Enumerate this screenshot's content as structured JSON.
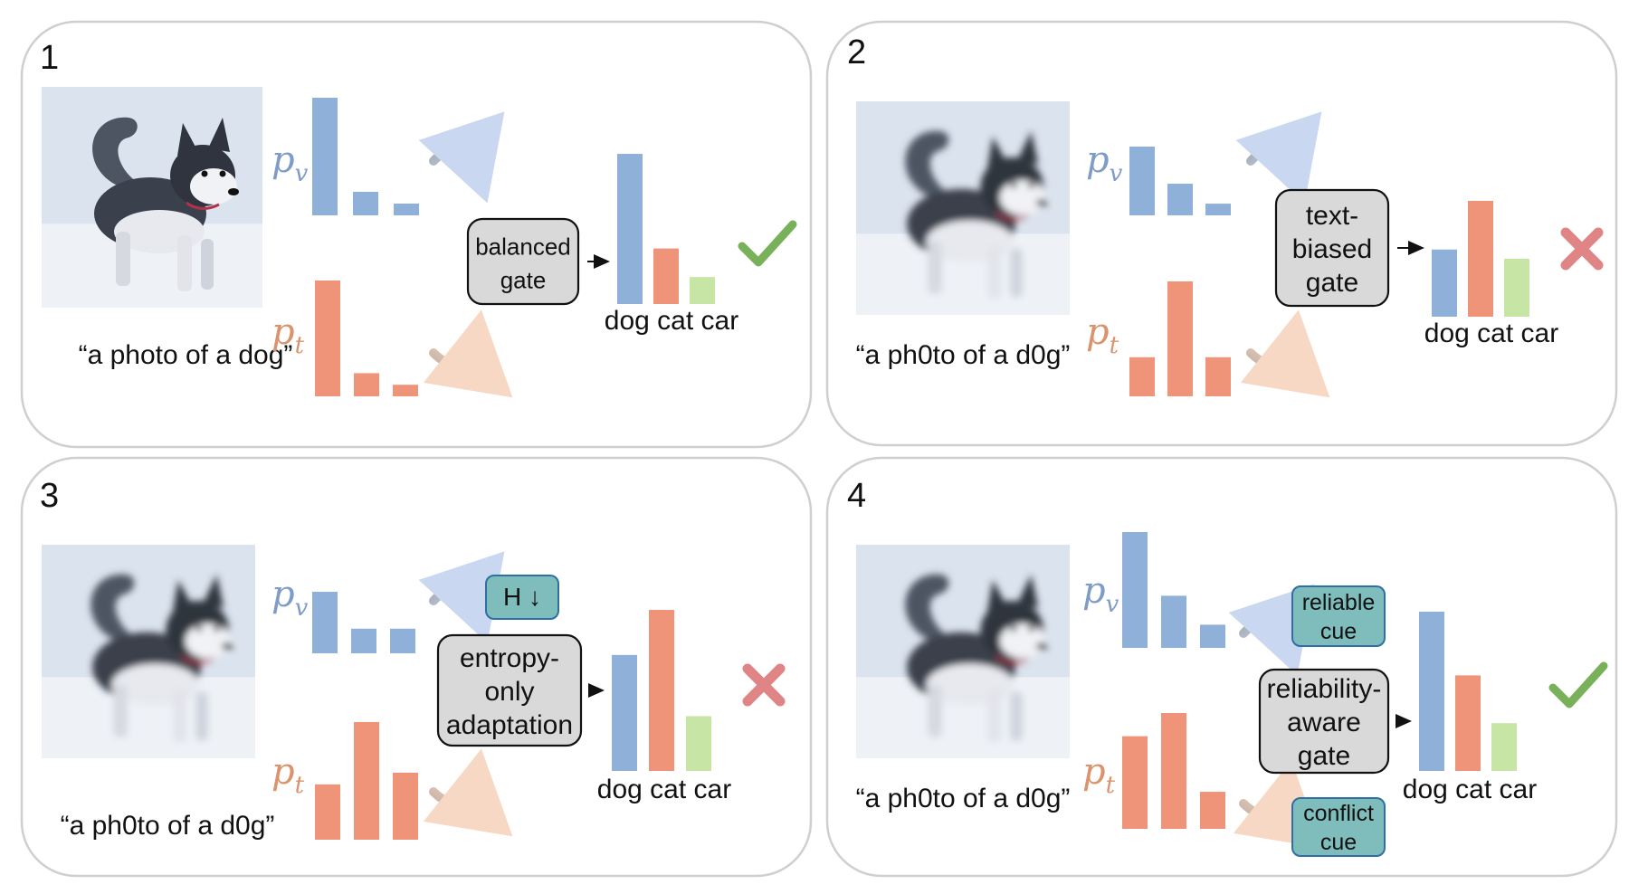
{
  "colors": {
    "visual": "#8fb0d8",
    "text": "#ef9478",
    "car": "#c7e5a5",
    "gate_fill": "#d9d9d9",
    "cue_fill": "#7fbcbc",
    "cue_stroke": "#2f6fa3",
    "check": "#79b15a",
    "cross": "#e08585",
    "pv_label": "#7f9cc7",
    "pt_label": "#d9946d",
    "panel_stroke": "#cfcfcf"
  },
  "icons": {
    "correct": "check-icon",
    "wrong": "cross-icon",
    "visual_arrow": "curved-arrow-icon",
    "text_arrow": "curved-arrow-icon"
  },
  "panels": [
    {
      "number": "1",
      "caption": "“a photo of a dog”",
      "image_quality": "clear",
      "pv_label": "p",
      "pv_sub": "v",
      "pt_label": "p",
      "pt_sub": "t",
      "pv_values": [
        1.0,
        0.2,
        0.1
      ],
      "pt_values": [
        1.0,
        0.2,
        0.1
      ],
      "gate": [
        "balanced",
        "gate"
      ],
      "cues": [],
      "output_values": [
        1.0,
        0.37,
        0.18
      ],
      "classes": "dog cat car",
      "result": "correct"
    },
    {
      "number": "2",
      "caption": "“a ph0to of a d0g”",
      "image_quality": "blurred",
      "pv_label": "p",
      "pv_sub": "v",
      "pt_label": "p",
      "pt_sub": "t",
      "pv_values": [
        1.0,
        0.46,
        0.17
      ],
      "pt_values": [
        0.34,
        1.0,
        0.34
      ],
      "gate": [
        "text-",
        "biased",
        "gate"
      ],
      "cues": [],
      "output_values": [
        0.58,
        1.0,
        0.5
      ],
      "classes": "dog cat car",
      "result": "wrong"
    },
    {
      "number": "3",
      "caption": "“a ph0to of a d0g”",
      "image_quality": "blurred",
      "pv_label": "p",
      "pv_sub": "v",
      "pt_label": "p",
      "pt_sub": "t",
      "pv_values": [
        1.0,
        0.4,
        0.4
      ],
      "pt_values": [
        0.47,
        1.0,
        0.57
      ],
      "gate": [
        "entropy-",
        "only",
        "adaptation"
      ],
      "cues": [
        "H ↓"
      ],
      "output_values": [
        0.72,
        1.0,
        0.34
      ],
      "classes": "dog cat car",
      "result": "wrong"
    },
    {
      "number": "4",
      "caption": "“a ph0to of a d0g”",
      "image_quality": "blurred",
      "pv_label": "p",
      "pv_sub": "v",
      "pt_label": "p",
      "pt_sub": "t",
      "pv_values": [
        1.0,
        0.45,
        0.2
      ],
      "pt_values": [
        0.8,
        1.0,
        0.32
      ],
      "gate": [
        "reliability-",
        "aware",
        "gate"
      ],
      "cues": [
        "reliable\ncue",
        "conflict\ncue"
      ],
      "output_values": [
        1.0,
        0.6,
        0.3
      ],
      "classes": "dog cat car",
      "result": "correct"
    }
  ]
}
